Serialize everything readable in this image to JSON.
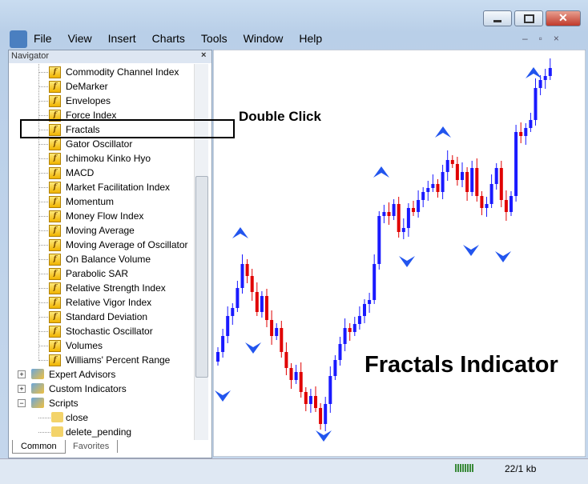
{
  "menu": {
    "items": [
      "File",
      "View",
      "Insert",
      "Charts",
      "Tools",
      "Window",
      "Help"
    ]
  },
  "navigator": {
    "title": "Navigator",
    "indicators": [
      "Commodity Channel Index",
      "DeMarker",
      "Envelopes",
      "Force Index",
      "Fractals",
      "Gator Oscillator",
      "Ichimoku Kinko Hyo",
      "MACD",
      "Market Facilitation Index",
      "Momentum",
      "Money Flow Index",
      "Moving Average",
      "Moving Average of Oscillator",
      "On Balance Volume",
      "Parabolic SAR",
      "Relative Strength Index",
      "Relative Vigor Index",
      "Standard Deviation",
      "Stochastic Oscillator",
      "Volumes",
      "Williams' Percent Range"
    ],
    "groups": [
      "Expert Advisors",
      "Custom Indicators",
      "Scripts"
    ],
    "scripts": [
      "close",
      "delete_pending"
    ],
    "tabs": [
      "Common",
      "Favorites"
    ]
  },
  "annotations": {
    "double_click": "Double Click",
    "indicator": "Fractals Indicator"
  },
  "status": {
    "traffic": "22/1 kb"
  }
}
